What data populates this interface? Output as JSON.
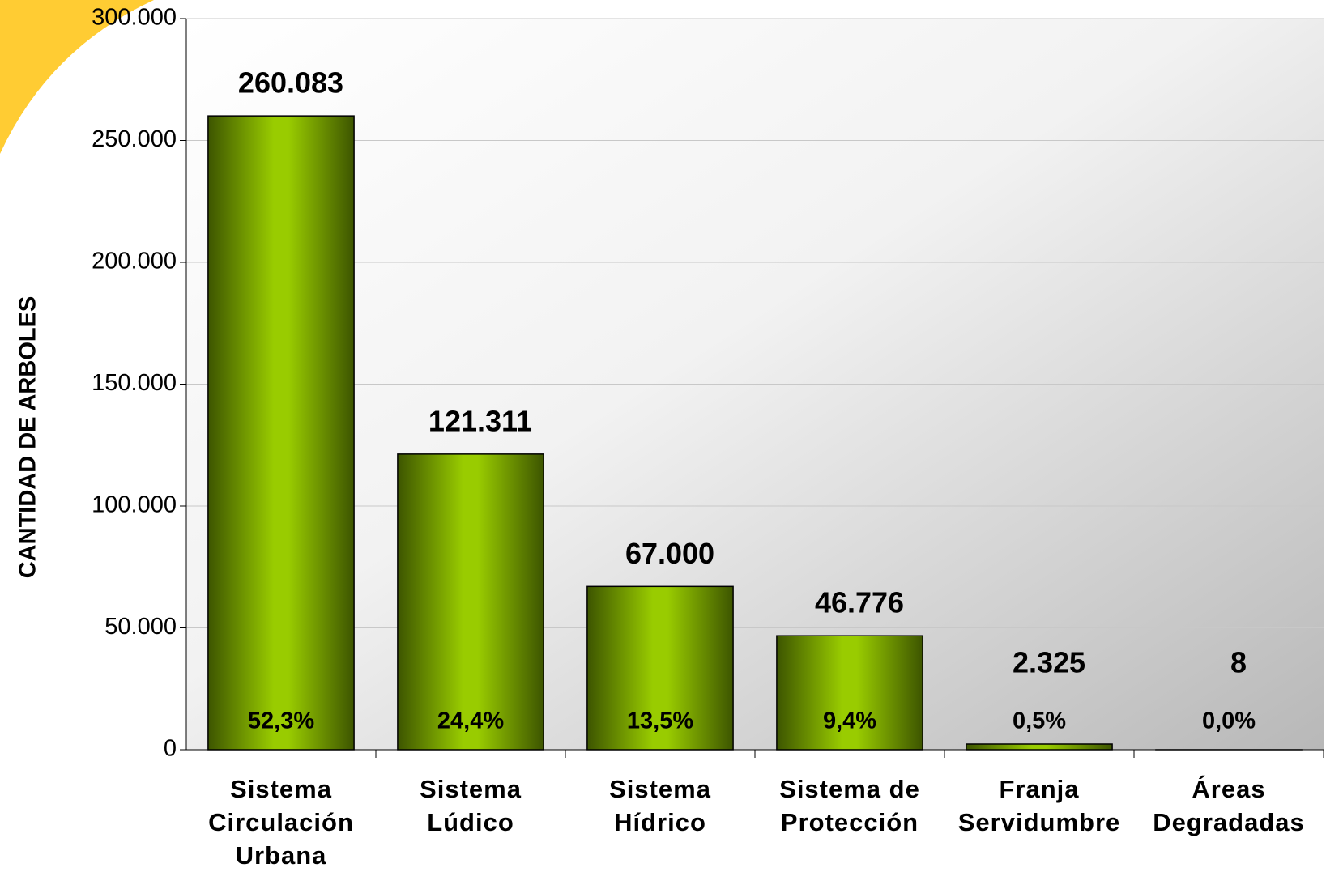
{
  "chart_data": {
    "type": "bar",
    "y_axis_label": "CANTIDAD DE ARBOLES",
    "categories": [
      "Sistema\nCirculación\nUrbana",
      "Sistema\nLúdico",
      "Sistema\nHídrico",
      "Sistema de\nProtección",
      "Franja\nServidumbre",
      "Áreas\nDegradadas"
    ],
    "values": [
      260083,
      121311,
      67000,
      46776,
      2325,
      8
    ],
    "value_labels": [
      "260.083",
      "121.311",
      "67.000",
      "46.776",
      "2.325",
      "8"
    ],
    "percentages": [
      52.3,
      24.4,
      13.5,
      9.4,
      0.5,
      0.0
    ],
    "percentage_labels": [
      "52,3%",
      "24,4%",
      "13,5%",
      "9,4%",
      "0,5%",
      "0,0%"
    ],
    "color": "#99cc00",
    "ylim": [
      0,
      300000
    ],
    "yticks": [
      0,
      {
        "value": 50000,
        "label": "50.000"
      },
      {
        "value": 100000,
        "label": "100.000"
      },
      {
        "value": 150000,
        "label": "150.000"
      },
      {
        "value": 200000,
        "label": "200.000"
      },
      {
        "value": 250000,
        "label": "250.000"
      },
      {
        "value": 300000,
        "label": "300.000"
      }
    ],
    "grid": true
  }
}
